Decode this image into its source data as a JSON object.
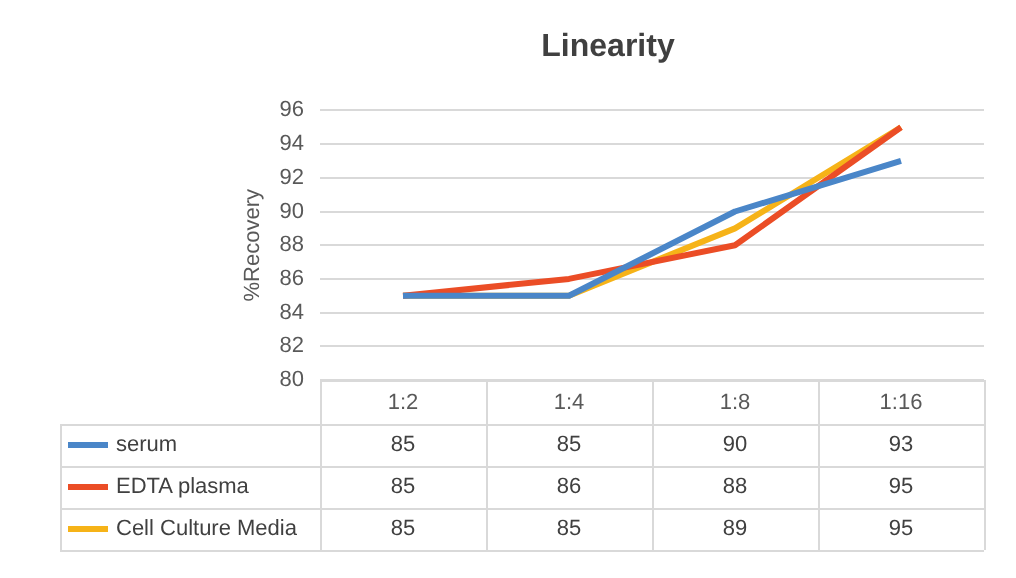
{
  "chart_data": {
    "type": "line",
    "title": "Linearity",
    "ylabel": "%Recovery",
    "categories": [
      "1:2",
      "1:4",
      "1:8",
      "1:16"
    ],
    "series": [
      {
        "name": "serum",
        "color": "#4a86c8",
        "values": [
          85,
          85,
          90,
          93
        ]
      },
      {
        "name": "EDTA plasma",
        "color": "#eb4d26",
        "values": [
          85,
          86,
          88,
          95
        ]
      },
      {
        "name": "Cell Culture Media",
        "color": "#f6b318",
        "values": [
          85,
          85,
          89,
          95
        ]
      }
    ],
    "ylim": [
      80,
      96
    ],
    "yticks": [
      80,
      82,
      84,
      86,
      88,
      90,
      92,
      94,
      96
    ],
    "grid": "y",
    "legend": "bottom",
    "data_labels": true
  }
}
